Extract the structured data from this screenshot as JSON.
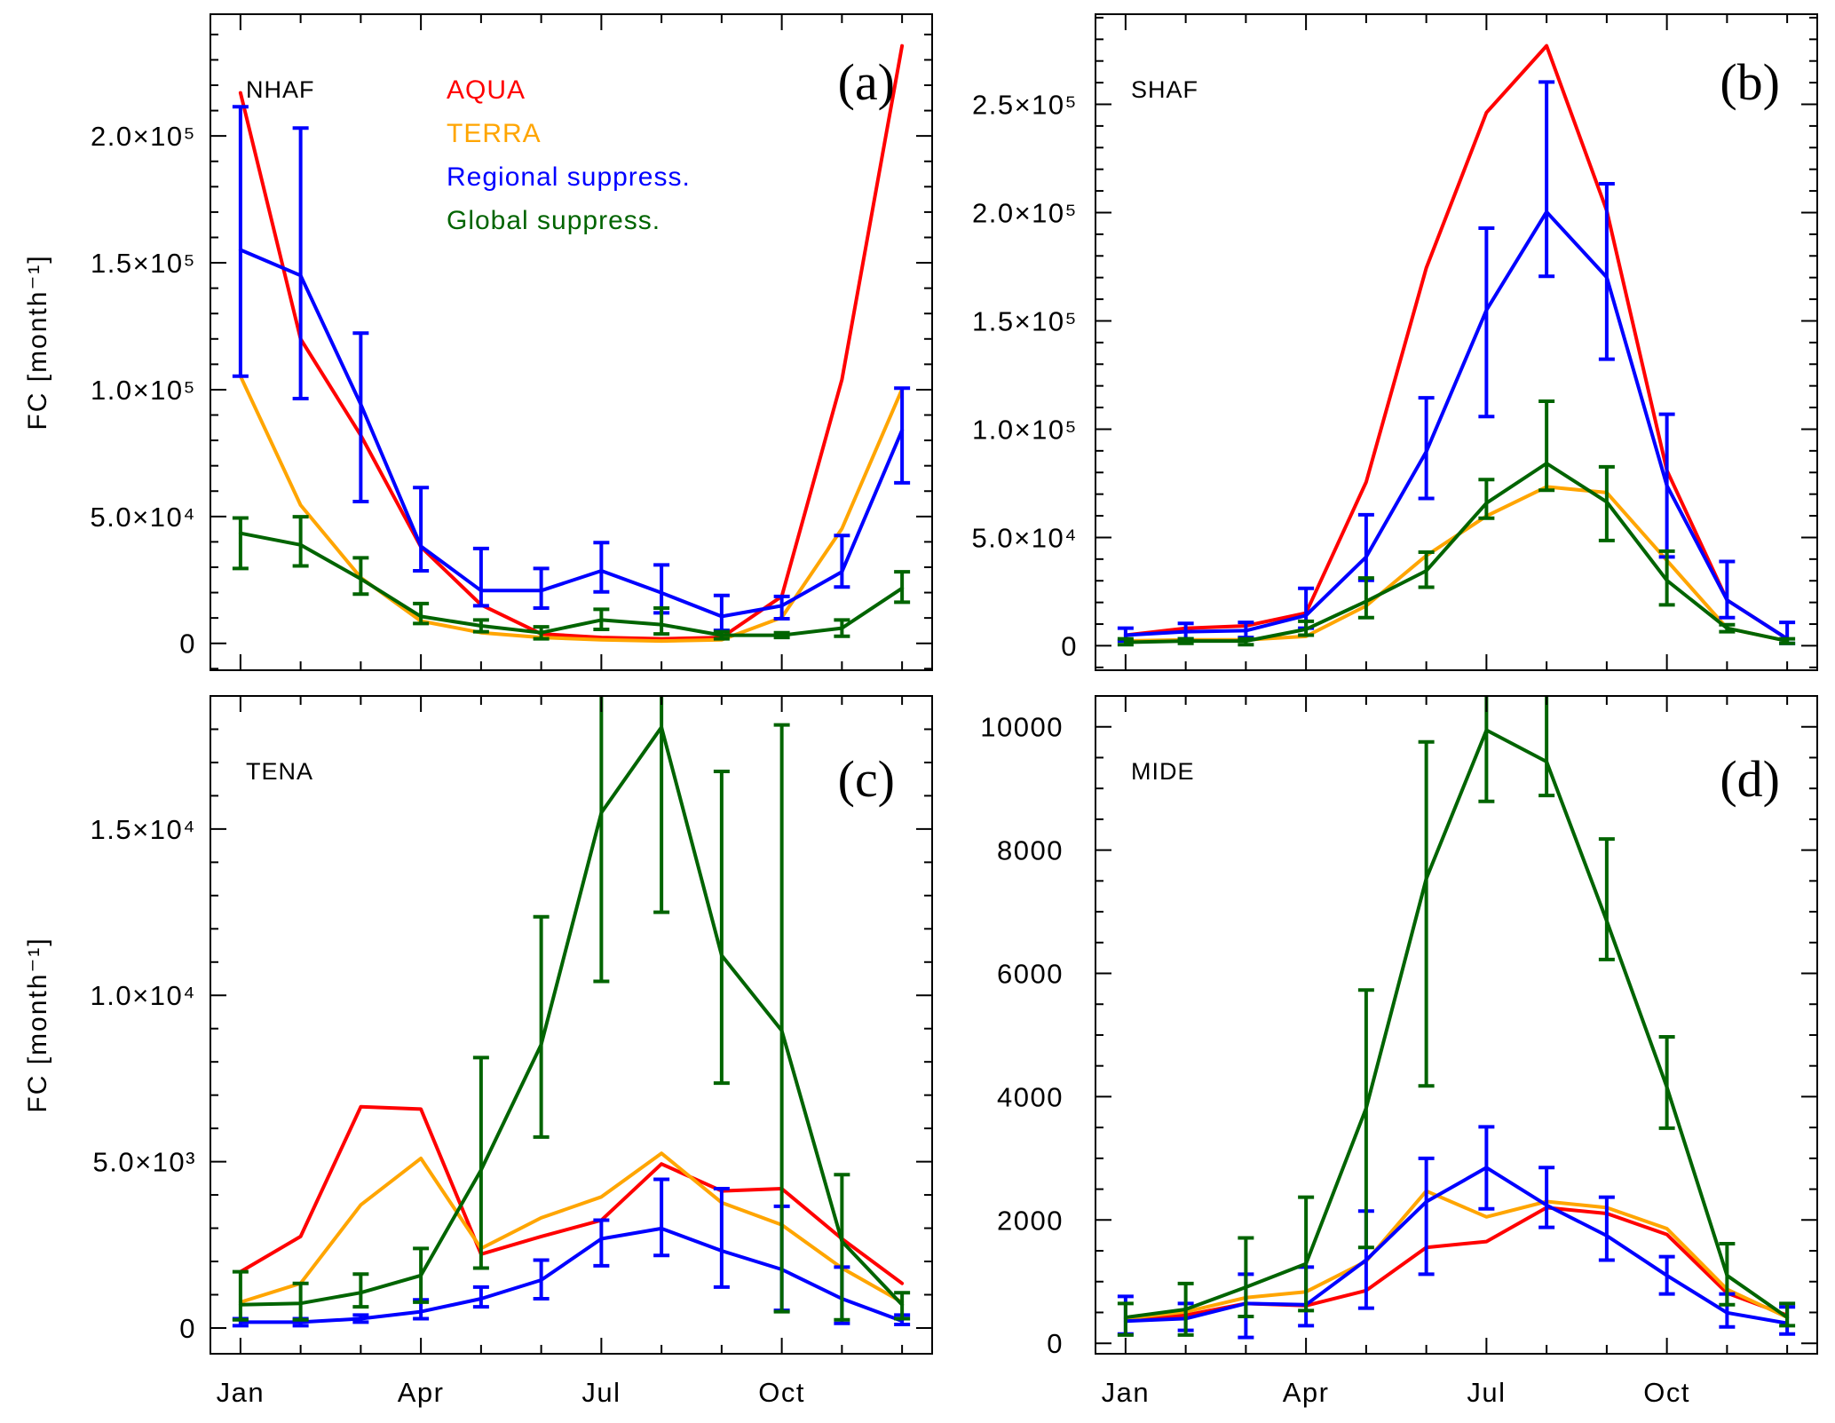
{
  "chart_data": [
    {
      "type": "line",
      "panel_label": "(a)",
      "region": "NHAF",
      "ylabel": "FC [month⁻¹]",
      "x": [
        1,
        2,
        3,
        4,
        5,
        6,
        7,
        8,
        9,
        10,
        11,
        12
      ],
      "xlim": [
        0.5,
        12.5
      ],
      "ylim": [
        -10600,
        248000
      ],
      "xticks": {
        "values": [
          1,
          4,
          7,
          10
        ],
        "labels": []
      },
      "yticks": {
        "values": [
          0,
          50000,
          100000,
          150000,
          200000
        ],
        "labels": [
          "0",
          "5.0×10⁴",
          "1.0×10⁵",
          "1.5×10⁵",
          "2.0×10⁵"
        ],
        "minor_step": 10000
      },
      "series": [
        {
          "name": "AQUA",
          "color": "#ff0000",
          "values": [
            217000,
            120000,
            82000,
            38000,
            15200,
            3700,
            2300,
            1800,
            2300,
            18500,
            104000,
            235500
          ]
        },
        {
          "name": "TERRA",
          "color": "#ffa500",
          "values": [
            105300,
            54500,
            25900,
            8800,
            4200,
            2300,
            1400,
            900,
            1400,
            10200,
            45200,
            100200
          ]
        },
        {
          "name": "Regional suppress.",
          "color": "#0000ff",
          "values": [
            155100,
            145000,
            94200,
            38300,
            20800,
            20800,
            28600,
            19900,
            10600,
            14800,
            28200,
            84000
          ],
          "err_low": [
            105300,
            96500,
            55900,
            28600,
            14800,
            13900,
            20300,
            12000,
            5100,
            9700,
            22200,
            63300
          ],
          "err_high": [
            211500,
            203100,
            122300,
            61400,
            37400,
            29500,
            39700,
            30900,
            18900,
            18500,
            42500,
            100600
          ]
        },
        {
          "name": "Global suppress.",
          "color": "#006400",
          "values": [
            43400,
            38800,
            25400,
            10600,
            6900,
            4200,
            9200,
            7400,
            3200,
            3200,
            6000,
            21700
          ],
          "err_low": [
            29500,
            30500,
            19400,
            7800,
            4600,
            1800,
            5500,
            3700,
            1800,
            2300,
            2800,
            16200
          ],
          "err_high": [
            49400,
            49900,
            33700,
            15700,
            9200,
            6500,
            13400,
            13900,
            4600,
            4200,
            9200,
            28200
          ]
        }
      ]
    },
    {
      "type": "line",
      "panel_label": "(b)",
      "region": "SHAF",
      "ylabel": "",
      "x": [
        1,
        2,
        3,
        4,
        5,
        6,
        7,
        8,
        9,
        10,
        11,
        12
      ],
      "xlim": [
        0.5,
        12.5
      ],
      "ylim": [
        -11300,
        291600
      ],
      "xticks": {
        "values": [
          1,
          4,
          7,
          10
        ],
        "labels": []
      },
      "yticks": {
        "values": [
          0,
          50000,
          100000,
          150000,
          200000,
          250000
        ],
        "labels": [
          "0",
          "5.0×10⁴",
          "1.0×10⁵",
          "1.5×10⁵",
          "2.0×10⁵",
          "2.5×10⁵"
        ],
        "minor_step": 10000
      },
      "series": [
        {
          "color": "#ff0000",
          "values": [
            4900,
            8100,
            9200,
            15100,
            75600,
            174400,
            246200,
            277000,
            200900,
            81000,
            21100,
            3200
          ]
        },
        {
          "color": "#ffa500",
          "values": [
            2200,
            2700,
            2700,
            4300,
            18400,
            41600,
            59900,
            73400,
            70700,
            39400,
            8100,
            2200
          ]
        },
        {
          "color": "#0000ff",
          "values": [
            4900,
            6500,
            7000,
            14000,
            41000,
            89600,
            155000,
            200300,
            170100,
            74000,
            21100,
            3200
          ],
          "err_low": [
            2200,
            3200,
            3800,
            8100,
            30200,
            68000,
            105800,
            170600,
            132300,
            41000,
            13000,
            1100
          ],
          "err_high": [
            8100,
            10300,
            10800,
            26500,
            60500,
            114500,
            192800,
            260300,
            213300,
            106900,
            38900,
            10800
          ]
        },
        {
          "color": "#006400",
          "values": [
            1600,
            2200,
            2200,
            7600,
            20500,
            34600,
            65900,
            84200,
            66400,
            30200,
            8100,
            2200
          ],
          "err_low": [
            500,
            1100,
            500,
            4900,
            13000,
            27000,
            58900,
            71800,
            48600,
            18900,
            6500,
            1100
          ],
          "err_high": [
            3200,
            3200,
            3200,
            11300,
            31300,
            43200,
            76700,
            112900,
            82600,
            43700,
            9700,
            3200
          ]
        }
      ]
    },
    {
      "type": "line",
      "panel_label": "(c)",
      "region": "TENA",
      "ylabel": "FC [month⁻¹]",
      "x": [
        1,
        2,
        3,
        4,
        5,
        6,
        7,
        8,
        9,
        10,
        11,
        12
      ],
      "xlim": [
        0.5,
        12.5
      ],
      "ylim": [
        -775,
        19000
      ],
      "xticks": {
        "values": [
          1,
          4,
          7,
          10
        ],
        "labels": [
          "Jan",
          "Apr",
          "Jul",
          "Oct"
        ]
      },
      "yticks": {
        "values": [
          0,
          5000,
          10000,
          15000
        ],
        "labels": [
          "0",
          "5.0×10³",
          "1.0×10⁴",
          "1.5×10⁴"
        ],
        "minor_step": 1000
      },
      "series": [
        {
          "color": "#ff0000",
          "values": [
            1690,
            2750,
            6650,
            6580,
            2220,
            2750,
            3240,
            4930,
            4120,
            4190,
            2680,
            1340
          ]
        },
        {
          "color": "#ffa500",
          "values": [
            775,
            1340,
            3700,
            5100,
            2390,
            3310,
            3940,
            5250,
            3770,
            3100,
            1800,
            775
          ]
        },
        {
          "color": "#0000ff",
          "values": [
            175,
            175,
            280,
            490,
            880,
            1440,
            2680,
            2990,
            2320,
            1760,
            880,
            210
          ],
          "err_low": [
            70,
            70,
            175,
            280,
            635,
            880,
            1870,
            2180,
            1230,
            530,
            140,
            105
          ],
          "err_high": [
            280,
            280,
            390,
            845,
            1230,
            2040,
            3240,
            4470,
            4190,
            3660,
            1830,
            390
          ]
        },
        {
          "color": "#006400",
          "values": [
            700,
            740,
            1060,
            1580,
            4750,
            8520,
            15490,
            18060,
            11200,
            8940,
            2600,
            700
          ],
          "err_low": [
            245,
            245,
            635,
            775,
            1800,
            5740,
            10420,
            12500,
            7360,
            490,
            245,
            280
          ],
          "err_high": [
            1690,
            1340,
            1620,
            2390,
            8130,
            12360,
            19500,
            19500,
            16730,
            18130,
            4610,
            1060
          ]
        }
      ]
    },
    {
      "type": "line",
      "panel_label": "(d)",
      "region": "MIDE",
      "ylabel": "",
      "x": [
        1,
        2,
        3,
        4,
        5,
        6,
        7,
        8,
        9,
        10,
        11,
        12
      ],
      "xlim": [
        0.5,
        12.5
      ],
      "ylim": [
        -170,
        10500
      ],
      "xticks": {
        "values": [
          1,
          4,
          7,
          10
        ],
        "labels": [
          "Jan",
          "Apr",
          "Jul",
          "Oct"
        ]
      },
      "yticks": {
        "values": [
          0,
          2000,
          4000,
          6000,
          8000,
          10000
        ],
        "labels": [
          "0",
          "2000",
          "4000",
          "6000",
          "8000",
          "10000"
        ],
        "minor_step": 500
      },
      "series": [
        {
          "color": "#ff0000",
          "values": [
            400,
            455,
            645,
            610,
            855,
            1555,
            1650,
            2200,
            2105,
            1765,
            815,
            455
          ]
        },
        {
          "color": "#ffa500",
          "values": [
            400,
            510,
            740,
            835,
            1330,
            2470,
            2050,
            2300,
            2200,
            1860,
            875,
            420
          ]
        },
        {
          "color": "#0000ff",
          "values": [
            360,
            400,
            645,
            625,
            1350,
            2295,
            2850,
            2240,
            1745,
            1100,
            495,
            325
          ],
          "err_low": [
            150,
            210,
            95,
            285,
            570,
            1120,
            2180,
            1880,
            1350,
            800,
            265,
            150
          ],
          "err_high": [
            760,
            645,
            1120,
            1235,
            2145,
            3000,
            3510,
            2850,
            2370,
            1405,
            800,
            590
          ]
        },
        {
          "color": "#006400",
          "values": [
            420,
            550,
            910,
            1290,
            3815,
            7535,
            9945,
            9435,
            6850,
            4155,
            1100,
            420
          ],
          "err_low": [
            135,
            135,
            435,
            530,
            1555,
            4175,
            8790,
            8885,
            6225,
            3490,
            625,
            285
          ],
          "err_high": [
            645,
            970,
            1710,
            2370,
            5730,
            9755,
            10800,
            10800,
            8180,
            4970,
            1615,
            645
          ]
        }
      ]
    }
  ]
}
